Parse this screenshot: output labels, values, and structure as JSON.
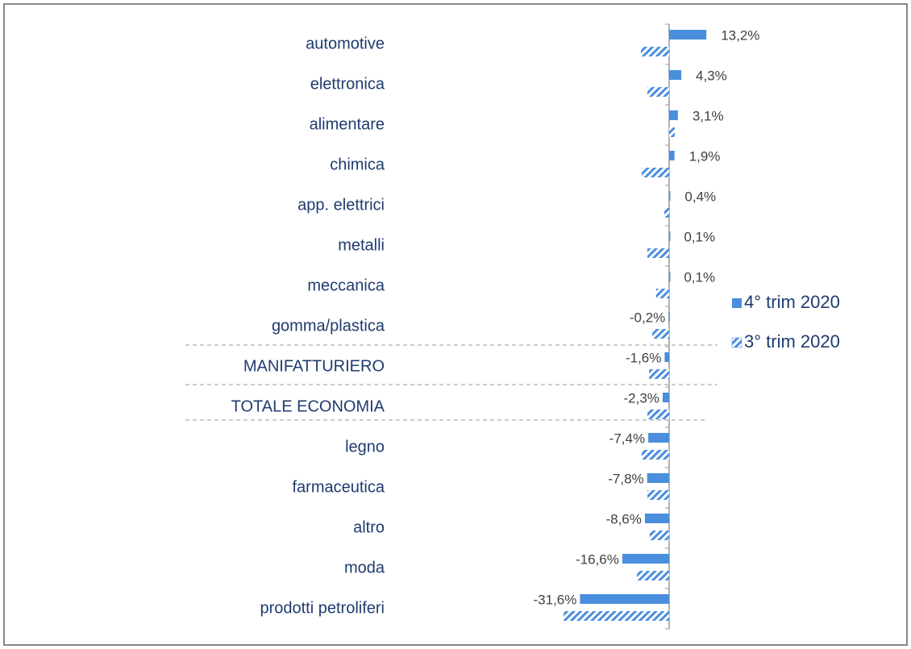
{
  "chart_data": {
    "type": "bar",
    "orientation": "horizontal",
    "categories": [
      "automotive",
      "elettronica",
      "alimentare",
      "chimica",
      "app. elettrici",
      "metalli",
      "meccanica",
      "gomma/plastica",
      "MANIFATTURIERO",
      "TOTALE ECONOMIA",
      "legno",
      "farmaceutica",
      "altro",
      "moda",
      "prodotti petroliferi"
    ],
    "series": [
      {
        "name": "4° trim 2020",
        "color": "#4a8ede",
        "pattern": "solid",
        "values": [
          13.2,
          4.3,
          3.1,
          1.9,
          0.4,
          0.1,
          0.1,
          -0.2,
          -1.6,
          -2.3,
          -7.4,
          -7.8,
          -8.6,
          -16.6,
          -31.6
        ],
        "value_labels": [
          "13,2%",
          "4,3%",
          "3,1%",
          "1,9%",
          "0,4%",
          "0,1%",
          "0,1%",
          "-0,2%",
          "-1,6%",
          "-2,3%",
          "-7,4%",
          "-7,8%",
          "-8,6%",
          "-16,6%",
          "-31,6%"
        ]
      },
      {
        "name": "3° trim 2020",
        "color": "#4a8ede",
        "pattern": "hatched",
        "values": [
          -10.0,
          -7.7,
          2.0,
          -9.7,
          -1.7,
          -7.7,
          -4.6,
          -6.0,
          -7.1,
          -7.7,
          -9.7,
          -7.7,
          -6.9,
          -11.4,
          -37.4
        ]
      }
    ],
    "xlim": [
      -40,
      20
    ],
    "legend": "right"
  }
}
